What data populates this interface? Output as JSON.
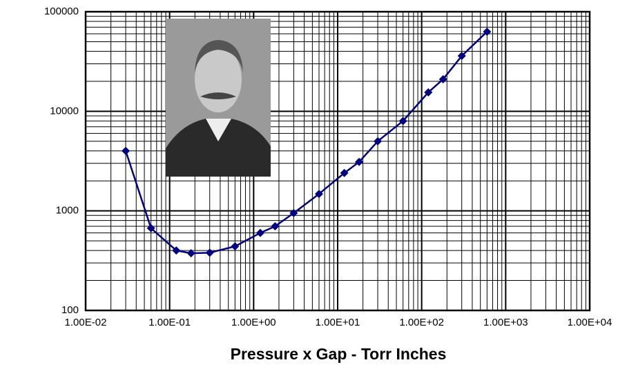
{
  "chart_data": {
    "type": "line",
    "x_label": "Pressure x Gap - Torr Inches",
    "log_x": true,
    "log_y": true,
    "grid": true,
    "xlim": [
      0.01,
      10000
    ],
    "ylim": [
      100,
      100000
    ],
    "xticks": [
      {
        "value": 0.01,
        "label": "1.00E-02"
      },
      {
        "value": 0.1,
        "label": "1.00E-01"
      },
      {
        "value": 1,
        "label": "1.00E+00"
      },
      {
        "value": 10,
        "label": "1.00E+01"
      },
      {
        "value": 100,
        "label": "1.00E+02"
      },
      {
        "value": 1000,
        "label": "1.00E+03"
      },
      {
        "value": 10000,
        "label": "1.00E+04"
      }
    ],
    "yticks": [
      100,
      1000,
      10000,
      100000
    ],
    "series": [
      {
        "color": "#000080",
        "x": [
          0.03,
          0.06,
          0.12,
          0.18,
          0.3,
          0.6,
          1.2,
          1.8,
          3,
          6,
          12,
          18,
          30,
          60,
          120,
          180,
          300,
          600
        ],
        "values": [
          4000,
          670,
          400,
          375,
          380,
          440,
          600,
          700,
          950,
          1480,
          2400,
          3100,
          5000,
          8000,
          15500,
          21000,
          36000,
          63000
        ]
      }
    ]
  }
}
